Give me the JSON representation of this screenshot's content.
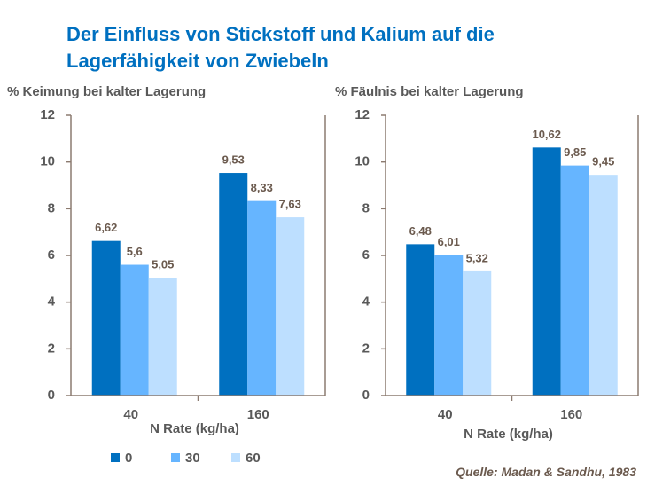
{
  "title": "Der Einfluss von Stickstoff und Kalium auf die Lagerfähigkeit von Zwiebeln",
  "source": "Quelle: Madan & Sandhu, 1983",
  "chart_data": [
    {
      "type": "bar",
      "y_label": "% Keimung bei kalter Lagerung",
      "x_label": "N Rate (kg/ha)",
      "categories": [
        "40",
        "160"
      ],
      "series": [
        {
          "name": "0",
          "color": "#0070c0",
          "values": [
            6.62,
            9.53
          ],
          "value_labels": [
            "6,62",
            "9,53"
          ]
        },
        {
          "name": "30",
          "color": "#66b5ff",
          "values": [
            5.6,
            8.33
          ],
          "value_labels": [
            "5,6",
            "8,33"
          ]
        },
        {
          "name": "60",
          "color": "#bddfff",
          "values": [
            5.05,
            7.63
          ],
          "value_labels": [
            "5,05",
            "7,63"
          ]
        }
      ],
      "ylim": [
        0,
        12
      ],
      "yticks": [
        0,
        2,
        4,
        6,
        8,
        10,
        12
      ],
      "legend": "bottom"
    },
    {
      "type": "bar",
      "y_label": "% Fäulnis bei kalter Lagerung",
      "x_label": "N Rate (kg/ha)",
      "categories": [
        "40",
        "160"
      ],
      "series": [
        {
          "name": "0",
          "color": "#0070c0",
          "values": [
            6.48,
            10.62
          ],
          "value_labels": [
            "6,48",
            "10,62"
          ]
        },
        {
          "name": "30",
          "color": "#66b5ff",
          "values": [
            6.01,
            9.85
          ],
          "value_labels": [
            "6,01",
            "9,85"
          ]
        },
        {
          "name": "60",
          "color": "#bddfff",
          "values": [
            5.32,
            9.45
          ],
          "value_labels": [
            "5,32",
            "9,45"
          ]
        }
      ],
      "ylim": [
        0,
        12
      ],
      "yticks": [
        0,
        2,
        4,
        6,
        8,
        10,
        12
      ]
    }
  ]
}
